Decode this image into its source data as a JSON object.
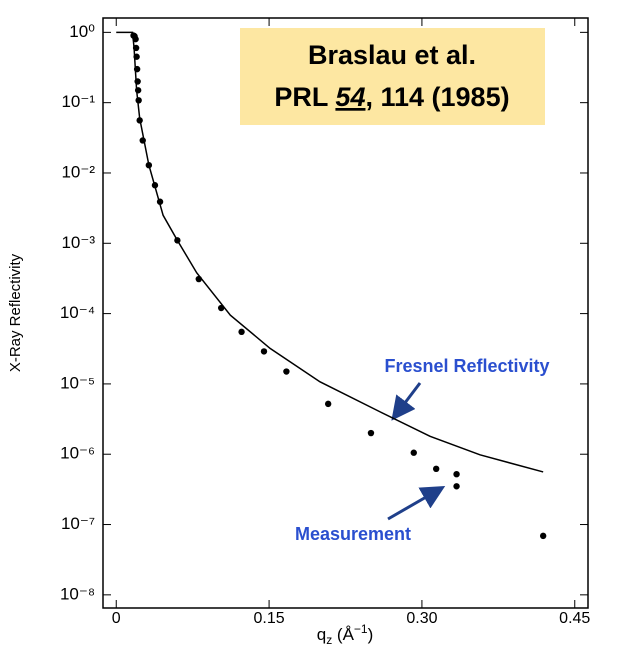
{
  "chart_data": {
    "type": "scatter",
    "citation": [
      "Braslau et al.",
      "PRL ",
      "54",
      ", 114 (1985)"
    ],
    "xlabel": [
      "q",
      "z",
      " (Å",
      "−1",
      ")"
    ],
    "ylabel": "X-Ray Reflectivity",
    "log_y": true,
    "xlim": [
      -0.013,
      0.463
    ],
    "ylim": [
      1.6,
      6.5e-09
    ],
    "xticks": [
      0,
      0.15,
      {
        "value": 0.3,
        "label": "0.30"
      },
      0.45
    ],
    "yticks": [
      {
        "value": 1,
        "label": "10⁰"
      },
      {
        "value": 0.1,
        "label": "10⁻¹"
      },
      {
        "value": 0.01,
        "label": "10⁻²"
      },
      {
        "value": 0.001,
        "label": "10⁻³"
      },
      {
        "value": 0.0001,
        "label": "10⁻⁴"
      },
      {
        "value": 1e-05,
        "label": "10⁻⁵"
      },
      {
        "value": 1e-06,
        "label": "10⁻⁶"
      },
      {
        "value": 1e-07,
        "label": "10⁻⁷"
      },
      {
        "value": 1e-08,
        "label": "10⁻⁸"
      }
    ],
    "series": [
      {
        "name": "Fresnel Reflectivity",
        "kind": "line",
        "color": "#000000",
        "x": [
          0,
          0.016,
          0.0175,
          0.02,
          0.023,
          0.032,
          0.046,
          0.06,
          0.079,
          0.112,
          0.151,
          0.2,
          0.259,
          0.308,
          0.357,
          0.419
        ],
        "values": [
          1,
          1,
          0.6,
          0.15,
          0.06,
          0.013,
          0.0025,
          0.0011,
          0.00038,
          9.5e-05,
          3.2e-05,
          1.07e-05,
          4e-06,
          1.8e-06,
          9.8e-07,
          5.6e-07
        ]
      },
      {
        "name": "Measurement",
        "kind": "points",
        "color": "#000000",
        "x": [
          0.017,
          0.018,
          0.019,
          0.0195,
          0.02,
          0.0205,
          0.021,
          0.0215,
          0.022,
          0.023,
          0.026,
          0.032,
          0.038,
          0.043,
          0.06,
          0.081,
          0.103,
          0.123,
          0.145,
          0.167,
          0.208,
          0.25,
          0.292,
          0.314,
          0.334,
          0.334,
          0.419
        ],
        "values": [
          0.9,
          0.88,
          0.8,
          0.6,
          0.45,
          0.3,
          0.2,
          0.15,
          0.108,
          0.056,
          0.029,
          0.0129,
          0.0067,
          0.0039,
          0.0011,
          0.00031,
          0.00012,
          5.5e-05,
          2.9e-05,
          1.5e-05,
          5.2e-06,
          2e-06,
          1.05e-06,
          6.2e-07,
          5.2e-07,
          3.5e-07,
          6.9e-08
        ]
      }
    ],
    "label_color": "#2a4fcf",
    "arrow_color": "#1f3f8a",
    "box_color": "#fde7a2"
  }
}
